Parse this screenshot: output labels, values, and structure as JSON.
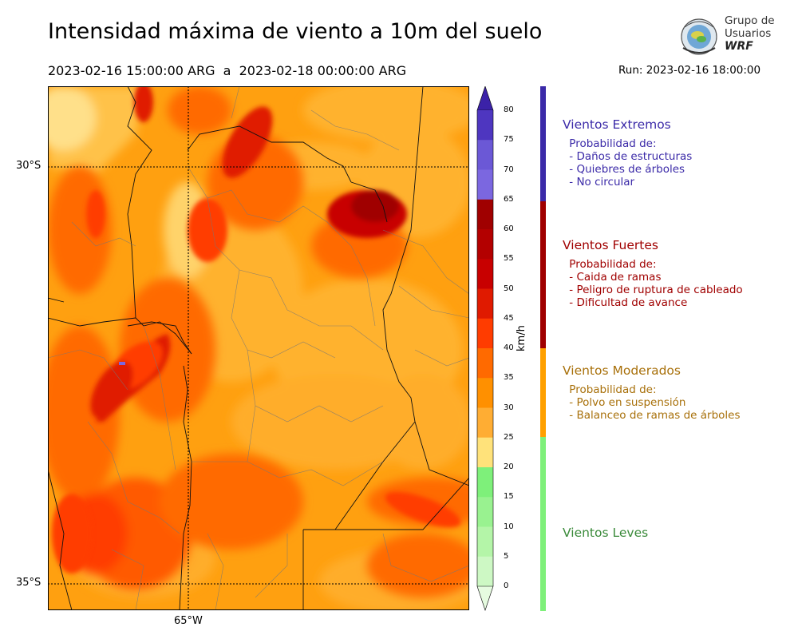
{
  "header": {
    "title": "Intensidad máxima de viento a 10m del suelo",
    "period": "2023-02-16 15:00:00 ARG  a  2023-02-18 00:00:00 ARG",
    "run": "Run: 2023-02-16 18:00:00"
  },
  "logo": {
    "line1": "Grupo de",
    "line2": "Usuarios",
    "line3": "WRF"
  },
  "map": {
    "lat_labels": [
      "30°S",
      "35°S"
    ],
    "lon_labels": [
      "65°W"
    ]
  },
  "colorbar": {
    "unit": "km/h",
    "ticks": [
      "80",
      "75",
      "70",
      "65",
      "60",
      "55",
      "50",
      "45",
      "40",
      "35",
      "30",
      "25",
      "20",
      "15",
      "10",
      "5",
      "0"
    ],
    "colors": [
      "#3b22a8",
      "#4e36c0",
      "#6b58d6",
      "#7b67e0",
      "#a00000",
      "#b30000",
      "#c80000",
      "#e01a00",
      "#ff3c00",
      "#ff6a00",
      "#ff9000",
      "#ffad33",
      "#ffe27a",
      "#7ef07a",
      "#99f290",
      "#b4f5a8",
      "#cdf8c4",
      "#e6fbe0"
    ]
  },
  "legend": [
    {
      "title": "Vientos Extremos",
      "color": "#3b2aa8",
      "bar": "#3b2aa8",
      "body": " Probabilidad de:\n - Daños de estructuras\n - Quiebres de árboles\n - No circular"
    },
    {
      "title": "Vientos Fuertes",
      "color": "#a00000",
      "bar": "#a00000",
      "body": " Probabilidad de:\n - Caida de ramas\n - Peligro de ruptura de cableado\n - Dificultad de avance"
    },
    {
      "title": "Vientos Moderados",
      "color": "#a8700a",
      "bar": "#ffa000",
      "body": " Probabilidad de:\n - Polvo en suspensión\n - Balanceo de ramas de árboles"
    },
    {
      "title": "Vientos Leves",
      "color": "#3a8a3a",
      "bar": "#7ef07a",
      "body": ""
    }
  ]
}
